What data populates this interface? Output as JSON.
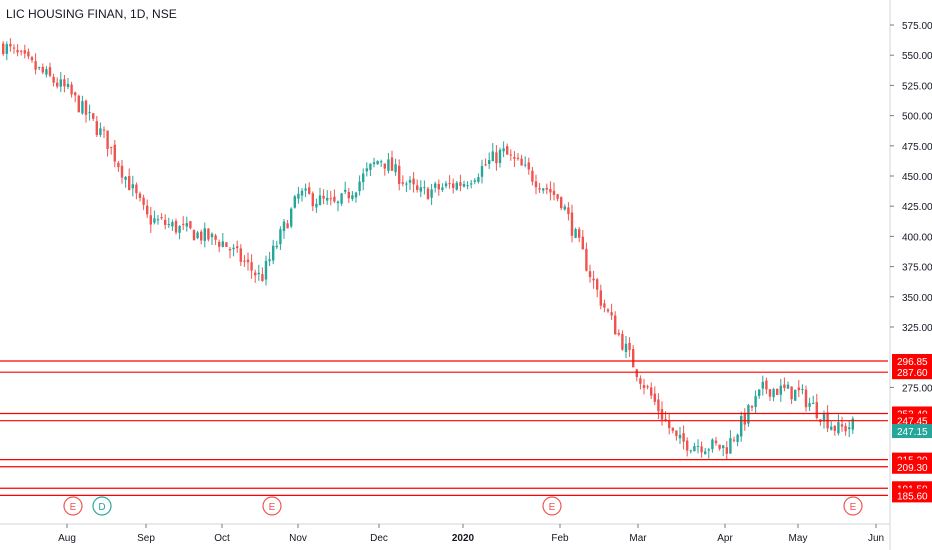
{
  "title": "LIC HOUSING FINAN, 1D, NSE",
  "colors": {
    "up": "#26a69a",
    "down": "#ef5350",
    "level_line": "#ff0000",
    "current_price_bg": "#26a69a",
    "axis_text": "#131722",
    "event_circle": "#ef5350",
    "dividend_circle": "#26a69a"
  },
  "chart_data": {
    "type": "candlestick",
    "title": "LIC HOUSING FINAN, 1D, NSE",
    "xlabel": "",
    "ylabel": "",
    "y_axis_side": "right",
    "grid": false,
    "y_ticks": [
      "575.00",
      "550.00",
      "525.00",
      "500.00",
      "475.00",
      "450.00",
      "425.00",
      "400.00",
      "375.00",
      "350.00",
      "325.00",
      "275.00"
    ],
    "x_ticks": [
      "Aug",
      "Sep",
      "Oct",
      "Nov",
      "Dec",
      "2020",
      "Feb",
      "Mar",
      "Apr",
      "May",
      "Jun"
    ],
    "price_levels": [
      {
        "label": "296.85",
        "value": 296.85
      },
      {
        "label": "287.60",
        "value": 287.6
      },
      {
        "label": "253.40",
        "value": 253.4
      },
      {
        "label": "247.45",
        "value": 247.45
      },
      {
        "label": "215.20",
        "value": 215.2
      },
      {
        "label": "209.30",
        "value": 209.3
      },
      {
        "label": "191.50",
        "value": 191.5
      },
      {
        "label": "185.60",
        "value": 185.6
      }
    ],
    "current_price": {
      "label": "247.15",
      "value": 247.15
    },
    "events": [
      {
        "letter": "E",
        "kind": "earnings",
        "month": "Aug"
      },
      {
        "letter": "D",
        "kind": "dividend",
        "month": "Aug"
      },
      {
        "letter": "E",
        "kind": "earnings",
        "month": "Oct"
      },
      {
        "letter": "E",
        "kind": "earnings",
        "month": "Jan"
      },
      {
        "letter": "E",
        "kind": "earnings",
        "month": "May"
      }
    ],
    "close_path_approx": [
      [
        "Jul",
        565
      ],
      [
        "Aug",
        520
      ],
      [
        "Aug (mid)",
        480
      ],
      [
        "Sep",
        415
      ],
      [
        "Sep (mid)",
        405
      ],
      [
        "Oct",
        395
      ],
      [
        "Oct (mid)",
        365
      ],
      [
        "Nov",
        435
      ],
      [
        "Nov (mid)",
        425
      ],
      [
        "Dec",
        465
      ],
      [
        "Dec (mid)",
        435
      ],
      [
        "2020",
        445
      ],
      [
        "Jan (mid)",
        470
      ],
      [
        "Feb",
        430
      ],
      [
        "Feb (mid)",
        350
      ],
      [
        "Mar",
        285
      ],
      [
        "Mar (mid)",
        230
      ],
      [
        "Apr",
        225
      ],
      [
        "Apr (mid)",
        275
      ],
      [
        "May",
        270
      ],
      [
        "May (mid)",
        240
      ],
      [
        "Jun",
        250
      ]
    ]
  }
}
